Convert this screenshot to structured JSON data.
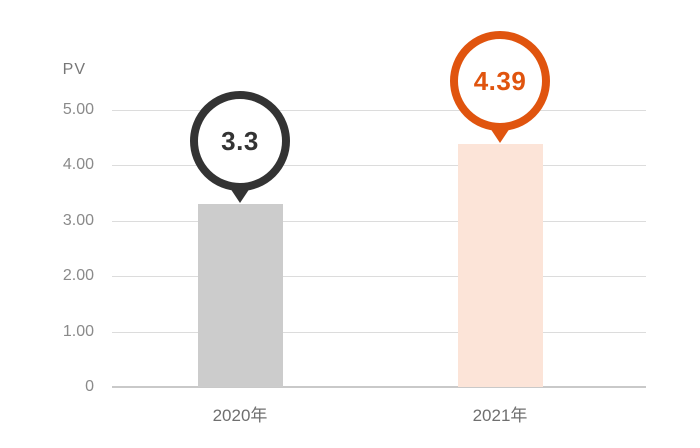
{
  "chart_data": {
    "type": "bar",
    "title": "",
    "ylabel": "PV",
    "xlabel": "",
    "categories": [
      "2020年",
      "2021年"
    ],
    "values": [
      3.3,
      4.39
    ],
    "value_labels": [
      "3.3",
      "4.39"
    ],
    "ytick_labels": [
      "5.00",
      "4.00",
      "3.00",
      "2.00",
      "1.00",
      "0"
    ],
    "ytick_values": [
      5,
      4,
      3,
      2,
      1,
      0
    ],
    "ylim": [
      0,
      5
    ],
    "grid": true,
    "legend": false,
    "bar_colors": [
      "#cccccc",
      "#fce4d8"
    ],
    "badge_colors": [
      "#333333",
      "#e0540e"
    ],
    "gridline_color": "#dcdcdc",
    "zero_line_color": "#c9c9c9",
    "axis_text_color": "#8a8a8a",
    "category_text_color": "#6f6f6f"
  }
}
